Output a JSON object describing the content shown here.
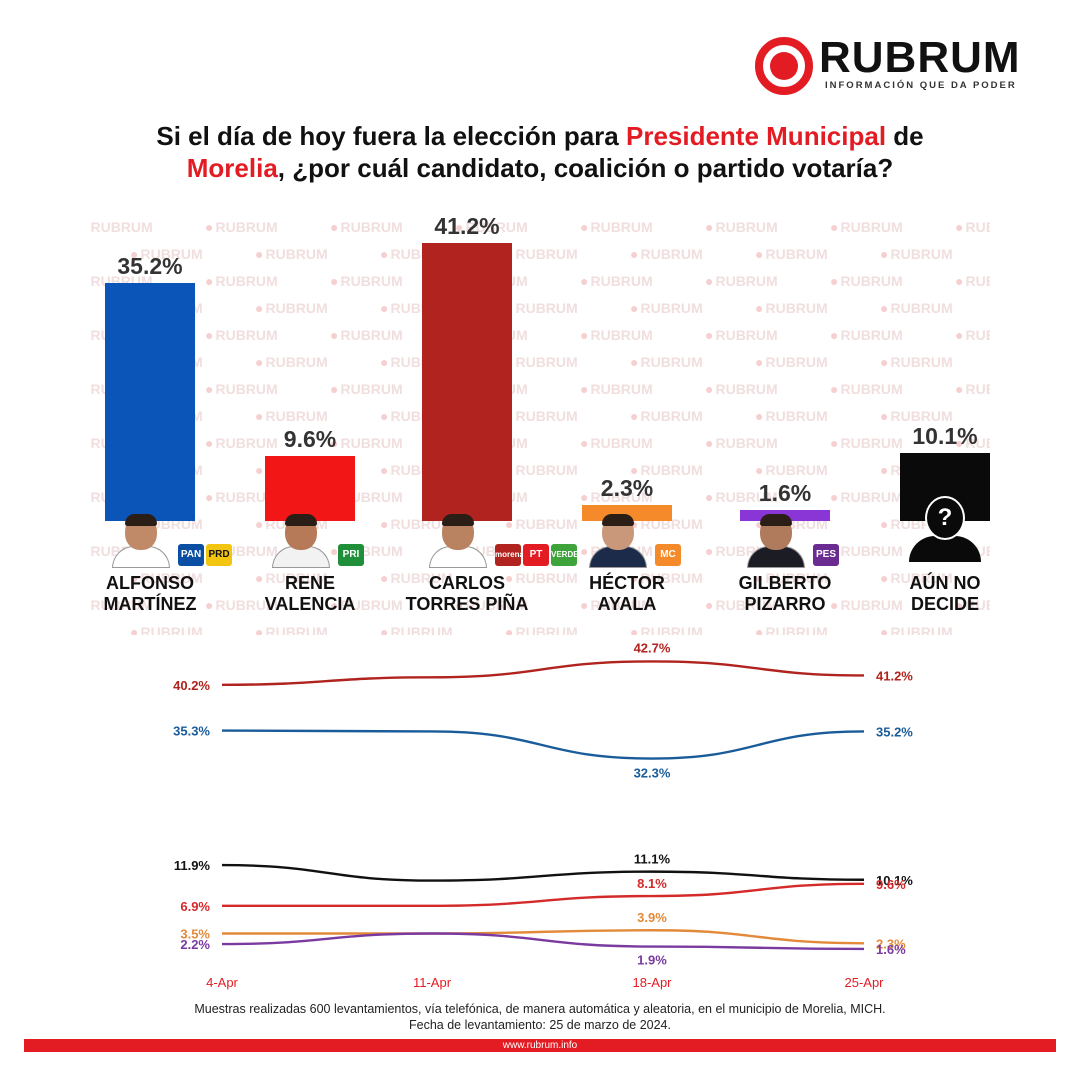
{
  "brand": {
    "name": "RUBRUM",
    "tagline": "INFORMACIÓN QUE DA PODER",
    "url": "www.rubrum.info",
    "color": "#e31b23"
  },
  "question": {
    "part1": "Si el día de hoy fuera la elección para ",
    "highlight1": "Presidente Municipal",
    "part2": " de ",
    "highlight2": "Morelia",
    "part3": ", ¿por cuál candidato, coalición o partido votaría?"
  },
  "watermark_text": "RUBRUM",
  "chart_data": [
    {
      "type": "bar",
      "categories": [
        "ALFONSO MARTÍNEZ",
        "RENE VALENCIA",
        "CARLOS TORRES PIÑA",
        "HÉCTOR AYALA",
        "GILBERTO PIZARRO",
        "AÚN NO DECIDE"
      ],
      "name_lines": [
        [
          "ALFONSO",
          "MARTÍNEZ"
        ],
        [
          "RENE",
          "VALENCIA"
        ],
        [
          "CARLOS",
          "TORRES PIÑA"
        ],
        [
          "HÉCTOR",
          "AYALA"
        ],
        [
          "GILBERTO",
          "PIZARRO"
        ],
        [
          "AÚN NO",
          "DECIDE"
        ]
      ],
      "values": [
        35.2,
        9.6,
        41.2,
        2.3,
        1.6,
        10.1
      ],
      "labels": [
        "35.2%",
        "9.6%",
        "41.2%",
        "2.3%",
        "1.6%",
        "10.1%"
      ],
      "colors": [
        "#0b55b8",
        "#f21616",
        "#b0231e",
        "#f58a2a",
        "#8a35d6",
        "#0a0a0a"
      ],
      "parties": [
        [
          "PAN",
          "PRD"
        ],
        [
          "PRI"
        ],
        [
          "morena",
          "PT",
          "VERDE"
        ],
        [
          "MC"
        ],
        [
          "PES"
        ],
        []
      ],
      "party_colors": {
        "PAN": "#0a4fa3",
        "PRD": "#f2c511",
        "PRI": "#1f8f3a",
        "morena": "#b0231e",
        "PT": "#e31b23",
        "VERDE": "#3ea33a",
        "MC": "#f58a2a",
        "PES": "#6b2c91"
      },
      "unknown_icon": "?",
      "ylim": [
        0,
        41.2
      ]
    },
    {
      "type": "line",
      "x": [
        "4-Apr",
        "11-Apr",
        "18-Apr",
        "25-Apr"
      ],
      "series": [
        {
          "color": "#b0231e",
          "values": [
            40.2,
            41.0,
            42.7,
            41.2
          ],
          "labels": [
            "40.2%",
            "",
            "42.7%",
            "41.2%"
          ],
          "label_pos": [
            "left",
            "",
            "above",
            "right"
          ]
        },
        {
          "color": "#1a5c9a",
          "values": [
            35.3,
            35.2,
            32.3,
            35.2
          ],
          "labels": [
            "35.3%",
            "",
            "32.3%",
            "35.2%"
          ],
          "label_pos": [
            "left",
            "",
            "below",
            "right"
          ]
        }
      ],
      "ylim": [
        30,
        45
      ]
    },
    {
      "type": "line",
      "x": [
        "4-Apr",
        "11-Apr",
        "18-Apr",
        "25-Apr"
      ],
      "series": [
        {
          "color": "#111111",
          "values": [
            11.9,
            10.0,
            11.1,
            10.1
          ],
          "labels": [
            "11.9%",
            "",
            "11.1%",
            "10.1%"
          ],
          "label_pos": [
            "left",
            "",
            "above",
            "right"
          ]
        },
        {
          "color": "#d42a2a",
          "values": [
            6.9,
            6.9,
            8.1,
            9.6
          ],
          "labels": [
            "6.9%",
            "",
            "8.1%",
            "9.6%"
          ],
          "label_pos": [
            "left",
            "",
            "above",
            "right"
          ]
        },
        {
          "color": "#e38a3a",
          "values": [
            3.5,
            3.5,
            3.9,
            2.3
          ],
          "labels": [
            "3.5%",
            "",
            "3.9%",
            "2.3%"
          ],
          "label_pos": [
            "left",
            "",
            "above",
            "right"
          ]
        },
        {
          "color": "#7a3aa0",
          "values": [
            2.2,
            3.5,
            1.9,
            1.6
          ],
          "labels": [
            "2.2%",
            "",
            "1.9%",
            "1.6%"
          ],
          "label_pos": [
            "left",
            "",
            "below",
            "right"
          ]
        }
      ],
      "ylim": [
        0,
        14
      ]
    }
  ],
  "footer": {
    "line1": "Muestras realizadas 600 levantamientos, vía telefónica, de manera automática y aleatoria, en el municipio de Morelia, MICH.",
    "line2": "Fecha de levantamiento: 25 de marzo de 2024."
  }
}
